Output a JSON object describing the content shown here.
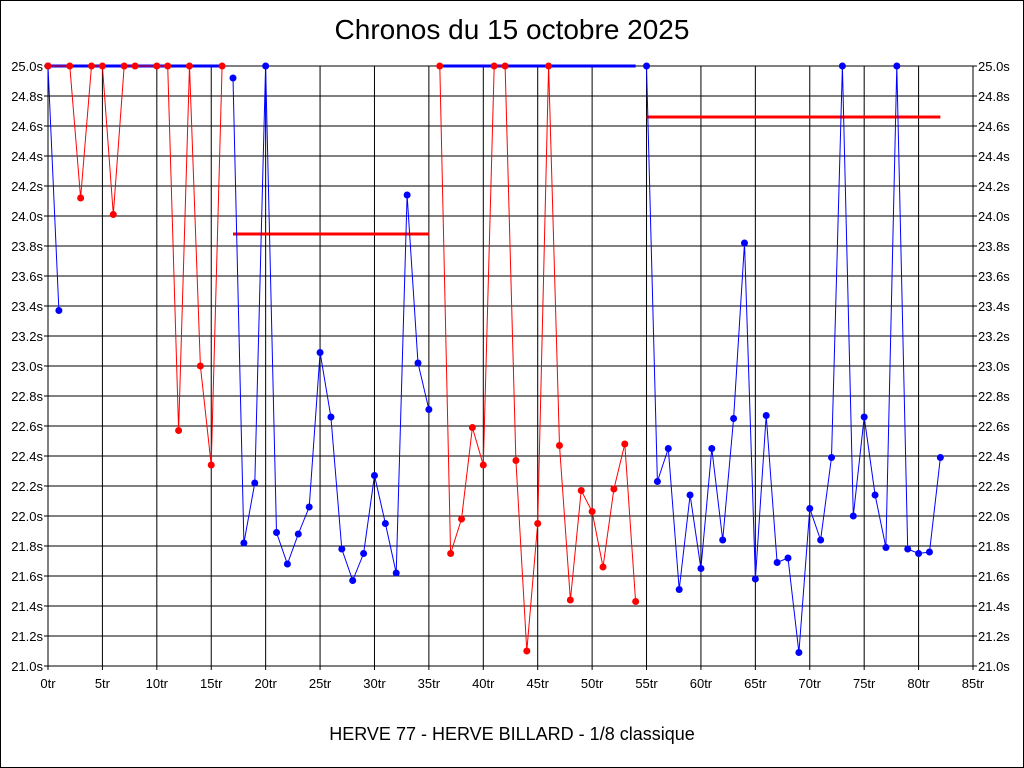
{
  "chart_data": {
    "type": "line",
    "title": "Chronos du 15 octobre 2025",
    "subtitle": "HERVE 77 - HERVE BILLARD - 1/8 classique",
    "xlim": [
      0,
      85
    ],
    "ylim": [
      21.0,
      25.0
    ],
    "x_ticks": [
      "0tr",
      "5tr",
      "10tr",
      "15tr",
      "20tr",
      "25tr",
      "30tr",
      "35tr",
      "40tr",
      "45tr",
      "50tr",
      "55tr",
      "60tr",
      "65tr",
      "70tr",
      "75tr",
      "80tr",
      "85tr"
    ],
    "y_ticks": [
      "21.0s",
      "21.2s",
      "21.4s",
      "21.6s",
      "21.8s",
      "22.0s",
      "22.2s",
      "22.4s",
      "22.6s",
      "22.8s",
      "23.0s",
      "23.2s",
      "23.4s",
      "23.6s",
      "23.8s",
      "24.0s",
      "24.2s",
      "24.4s",
      "24.6s",
      "24.8s",
      "25.0s"
    ],
    "grid": true,
    "colors": {
      "blue": "#0000ff",
      "red": "#ff0000"
    },
    "series": [
      {
        "color": "#0000ff",
        "x": [
          0,
          1
        ],
        "y": [
          25.0,
          23.37
        ]
      },
      {
        "color": "#ff0000",
        "x": [
          0,
          2,
          3,
          4,
          5,
          6,
          7,
          8,
          10,
          11,
          12,
          13,
          14,
          15,
          16
        ],
        "y": [
          25.0,
          25.0,
          24.12,
          25.0,
          25.0,
          24.01,
          25.0,
          25.0,
          25.0,
          25.0,
          22.57,
          25.0,
          23.0,
          22.34,
          25.0
        ]
      },
      {
        "color": "#0000ff",
        "x": [
          17,
          18,
          19,
          20,
          21,
          22,
          23,
          24,
          25,
          26,
          27,
          28,
          29,
          30,
          31,
          32,
          33,
          34,
          35
        ],
        "y": [
          24.92,
          21.82,
          22.22,
          25.0,
          21.89,
          21.68,
          21.88,
          22.06,
          23.09,
          22.66,
          21.78,
          21.57,
          21.75,
          22.27,
          21.95,
          21.62,
          24.14,
          23.02,
          22.71
        ]
      },
      {
        "color": "#ff0000",
        "x": [
          36,
          37,
          38,
          39,
          40,
          41,
          42,
          43,
          44,
          45,
          46,
          47,
          48,
          49,
          50,
          51,
          52,
          53,
          54
        ],
        "y": [
          25.0,
          21.75,
          21.98,
          22.59,
          22.34,
          25.0,
          25.0,
          22.37,
          21.1,
          21.95,
          25.0,
          22.47,
          21.44,
          22.17,
          22.03,
          21.66,
          22.18,
          22.48,
          21.43
        ]
      },
      {
        "color": "#0000ff",
        "x": [
          55,
          56,
          57,
          58,
          59,
          60,
          61,
          62,
          63,
          64,
          65,
          66,
          67,
          68,
          69,
          70,
          71,
          72,
          73,
          74,
          75,
          76,
          77,
          78,
          79,
          80,
          81,
          82
        ],
        "y": [
          25.0,
          22.23,
          22.45,
          21.51,
          22.14,
          21.65,
          22.45,
          21.84,
          22.65,
          23.82,
          21.58,
          22.67,
          21.69,
          21.72,
          21.09,
          22.05,
          21.84,
          22.39,
          25.0,
          22.0,
          22.66,
          22.14,
          21.79,
          25.0,
          21.78,
          21.75,
          21.76,
          22.39
        ]
      }
    ],
    "blue_segments": [
      {
        "x": [
          0,
          16
        ],
        "y": 25.0
      },
      {
        "x": [
          36,
          54
        ],
        "y": 25.0
      }
    ],
    "red_reference_lines": [
      {
        "x": [
          17,
          35
        ],
        "y": 23.88
      },
      {
        "x": [
          55,
          82
        ],
        "y": 24.66
      }
    ]
  }
}
